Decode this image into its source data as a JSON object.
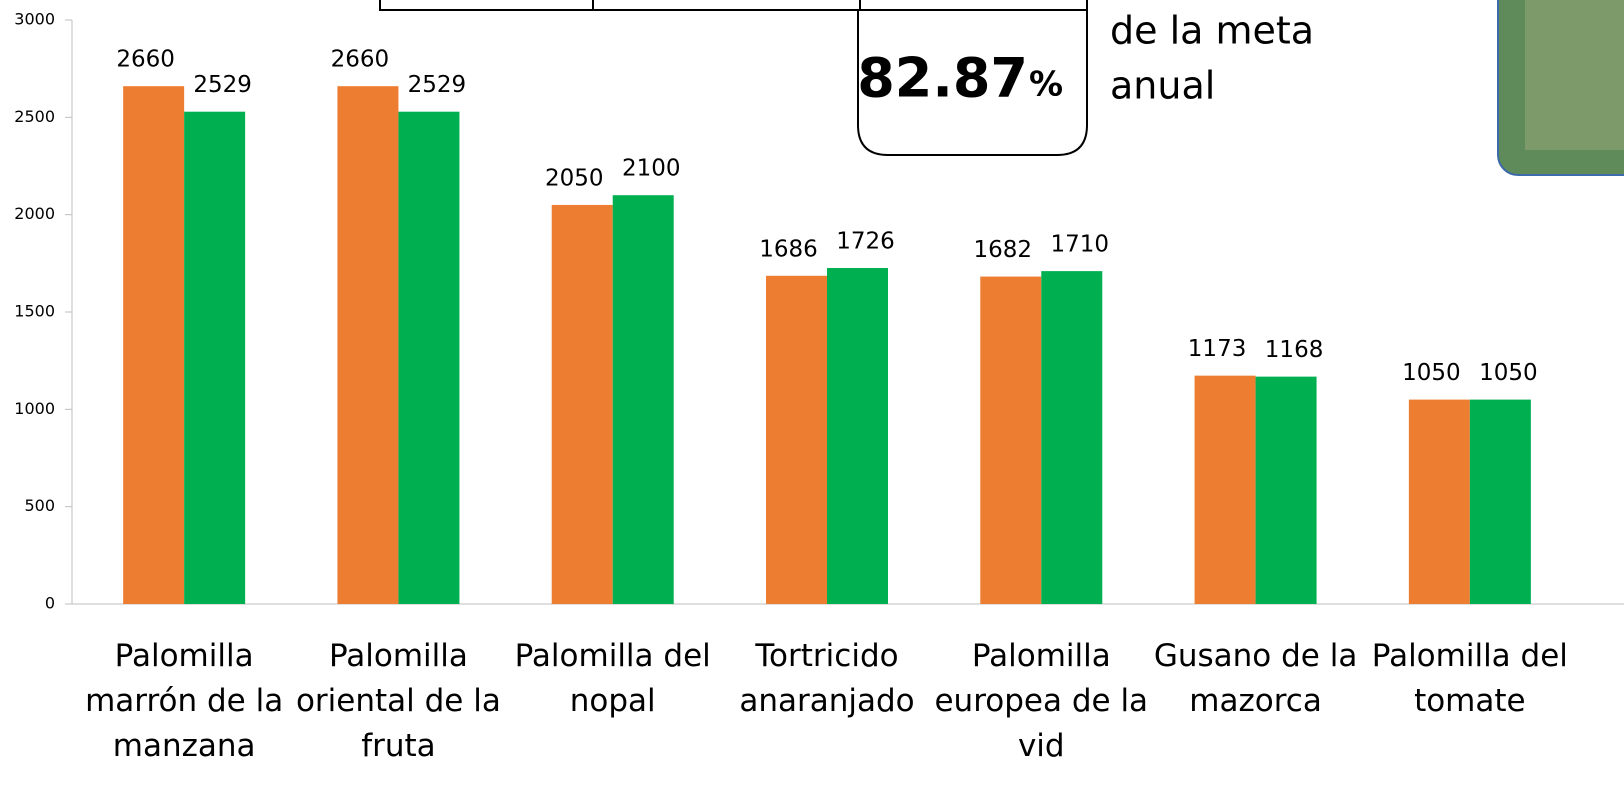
{
  "chart_data": {
    "type": "bar",
    "categories": [
      "Palomilla marrón de la manzana",
      "Palomilla oriental de la fruta",
      "Palomilla del nopal",
      "Tortricido anaranjado",
      "Palomilla europea de la vid",
      "Gusano de la mazorca",
      "Palomilla del tomate"
    ],
    "series": [
      {
        "color": "#ed7d31",
        "values": [
          2660,
          2660,
          2050,
          1686,
          1682,
          1173,
          1050
        ]
      },
      {
        "color": "#00b050",
        "values": [
          2529,
          2529,
          2100,
          1726,
          1710,
          1168,
          1050
        ]
      }
    ],
    "ylim": [
      0,
      3000
    ],
    "yticks": [
      0,
      500,
      1000,
      1500,
      2000,
      2500,
      3000
    ],
    "grid": false,
    "annotations": [
      "82.87",
      "%",
      "de la meta",
      "anual"
    ]
  }
}
